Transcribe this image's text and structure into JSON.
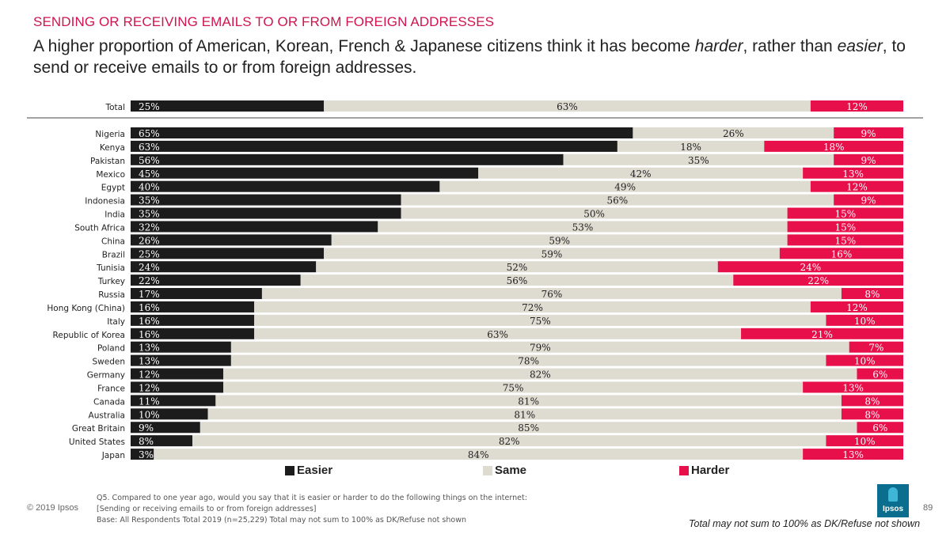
{
  "header": {
    "kicker": "SENDING OR RECEIVING EMAILS TO OR FROM FOREIGN ADDRESSES",
    "headline_parts": [
      "A higher proportion of American, Korean, French & Japanese citizens think it has become ",
      "harder",
      ", rather than ",
      "easier",
      ", to send or receive emails to or from foreign addresses."
    ]
  },
  "chart_data": {
    "type": "bar",
    "orientation": "horizontal",
    "stacked": true,
    "title": "Sending or receiving emails to or from foreign addresses",
    "xlim": [
      0,
      100
    ],
    "unit": "%",
    "colors": {
      "Easier": "#1c1c1c",
      "Same": "#dedbd1",
      "Harder": "#e8104a"
    },
    "total": {
      "category": "Total",
      "easier": 25,
      "same": 63,
      "harder": 12
    },
    "categories": [
      "Nigeria",
      "Kenya",
      "Pakistan",
      "Mexico",
      "Egypt",
      "Indonesia",
      "India",
      "South Africa",
      "China",
      "Brazil",
      "Tunisia",
      "Turkey",
      "Russia",
      "Hong Kong (China)",
      "Italy",
      "Republic of Korea",
      "Poland",
      "Sweden",
      "Germany",
      "France",
      "Canada",
      "Australia",
      "Great Britain",
      "United States",
      "Japan"
    ],
    "series": [
      {
        "name": "Easier",
        "values": [
          65,
          63,
          56,
          45,
          40,
          35,
          35,
          32,
          26,
          25,
          24,
          22,
          17,
          16,
          16,
          16,
          13,
          13,
          12,
          12,
          11,
          10,
          9,
          8,
          3
        ]
      },
      {
        "name": "Same",
        "values": [
          26,
          18,
          35,
          42,
          49,
          56,
          50,
          53,
          59,
          59,
          52,
          56,
          76,
          72,
          75,
          63,
          79,
          78,
          82,
          75,
          81,
          81,
          85,
          82,
          84
        ]
      },
      {
        "name": "Harder",
        "values": [
          9,
          18,
          9,
          13,
          12,
          9,
          15,
          15,
          15,
          16,
          24,
          22,
          8,
          12,
          10,
          21,
          7,
          10,
          6,
          13,
          8,
          8,
          6,
          10,
          13
        ]
      }
    ]
  },
  "legend": {
    "easier": "Easier",
    "same": "Same",
    "harder": "Harder"
  },
  "footnote": {
    "line1": "Q5. Compared to one year ago, would you say that it is easier or harder to do the following things on the internet:",
    "line2": "[Sending or receiving emails to or from foreign addresses]",
    "line3": "Base: All Respondents Total 2019 (n=25,229) Total may not sum to 100% as DK/Refuse not shown"
  },
  "copyright": "© 2019 Ipsos",
  "page_number": "89",
  "note": "Total may not sum to 100% as DK/Refuse not shown",
  "logo_text": "Ipsos"
}
